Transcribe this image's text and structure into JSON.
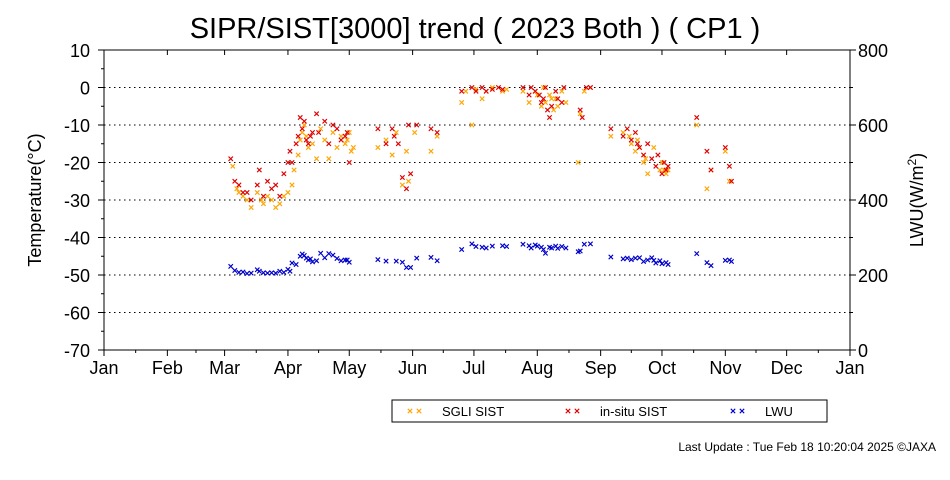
{
  "chart_data": {
    "type": "scatter",
    "title": "SIPR/SIST[3000] trend ( 2023 Both ) ( CP1 )",
    "xlabel": "",
    "ylabel": "Temperature(°C)",
    "ylabel_right_parts": [
      "LWU(W/m",
      "2",
      ")"
    ],
    "x_ticks": [
      "Jan",
      "Feb",
      "Mar",
      "Apr",
      "May",
      "Jun",
      "Jul",
      "Aug",
      "Sep",
      "Oct",
      "Nov",
      "Dec",
      "Jan"
    ],
    "x_range_days": [
      0,
      365
    ],
    "y_left": {
      "lim": [
        -70,
        10
      ],
      "ticks": [
        "10",
        "0",
        "-10",
        "-20",
        "-30",
        "-40",
        "-50",
        "-60",
        "-70"
      ]
    },
    "y_right": {
      "lim": [
        0,
        800
      ],
      "ticks": [
        "800",
        "600",
        "400",
        "200",
        "0"
      ]
    },
    "grid": "horizontal dotted",
    "legend": {
      "position": "bottom-center",
      "entries": [
        {
          "name": "SGLI SIST",
          "color": "#ffa500"
        },
        {
          "name": "in-situ SIST",
          "color": "#e00000"
        },
        {
          "name": "LWU",
          "color": "#0000cc"
        }
      ]
    },
    "series": [
      {
        "name": "SGLI SIST",
        "color": "#ffa500",
        "axis": "left",
        "points": [
          [
            63,
            -21
          ],
          [
            65,
            -27
          ],
          [
            66,
            -28
          ],
          [
            68,
            -29
          ],
          [
            70,
            -30
          ],
          [
            72,
            -32
          ],
          [
            75,
            -28
          ],
          [
            77,
            -30
          ],
          [
            78,
            -31
          ],
          [
            80,
            -29
          ],
          [
            82,
            -30
          ],
          [
            84,
            -32
          ],
          [
            86,
            -31
          ],
          [
            88,
            -29
          ],
          [
            90,
            -28
          ],
          [
            92,
            -26
          ],
          [
            93,
            -22
          ],
          [
            95,
            -18
          ],
          [
            96,
            -14
          ],
          [
            97,
            -12
          ],
          [
            98,
            -10
          ],
          [
            99,
            -13
          ],
          [
            100,
            -16
          ],
          [
            102,
            -15
          ],
          [
            104,
            -19
          ],
          [
            106,
            -11
          ],
          [
            108,
            -14
          ],
          [
            110,
            -19
          ],
          [
            112,
            -12
          ],
          [
            114,
            -16
          ],
          [
            116,
            -13
          ],
          [
            118,
            -15
          ],
          [
            119,
            -14
          ],
          [
            120,
            -12
          ],
          [
            121,
            -17
          ],
          [
            122,
            -16
          ],
          [
            134,
            -16
          ],
          [
            138,
            -14
          ],
          [
            141,
            -18
          ],
          [
            143,
            -12
          ],
          [
            146,
            -26
          ],
          [
            148,
            -17
          ],
          [
            149,
            -25
          ],
          [
            152,
            -12
          ],
          [
            160,
            -17
          ],
          [
            163,
            -13
          ],
          [
            175,
            -4
          ],
          [
            177,
            -1
          ],
          [
            180,
            -10
          ],
          [
            182,
            -0.5
          ],
          [
            185,
            -3
          ],
          [
            187,
            -1
          ],
          [
            190,
            0
          ],
          [
            195,
            -1
          ],
          [
            197,
            -0.5
          ],
          [
            205,
            -1
          ],
          [
            208,
            -4
          ],
          [
            211,
            -1
          ],
          [
            212,
            -2
          ],
          [
            214,
            -5
          ],
          [
            215,
            0
          ],
          [
            216,
            -4
          ],
          [
            218,
            -2
          ],
          [
            219,
            -3
          ],
          [
            220,
            -6
          ],
          [
            221,
            -3
          ],
          [
            222,
            -5
          ],
          [
            224,
            -1
          ],
          [
            226,
            -4
          ],
          [
            232,
            -20
          ],
          [
            233,
            -7
          ],
          [
            235,
            -1
          ],
          [
            238,
            0
          ],
          [
            248,
            -13
          ],
          [
            254,
            -12
          ],
          [
            257,
            -13
          ],
          [
            258,
            -15
          ],
          [
            260,
            -17
          ],
          [
            261,
            -14
          ],
          [
            262,
            -16
          ],
          [
            264,
            -20
          ],
          [
            265,
            -19
          ],
          [
            266,
            -23
          ],
          [
            269,
            -16
          ],
          [
            272,
            -22
          ],
          [
            273,
            -20
          ],
          [
            274,
            -22
          ],
          [
            275,
            -23
          ],
          [
            276,
            -22
          ],
          [
            290,
            -10
          ],
          [
            295,
            -27
          ],
          [
            297,
            -22
          ],
          [
            304,
            -17
          ],
          [
            306,
            -25
          ]
        ]
      },
      {
        "name": "in-situ SIST",
        "color": "#e00000",
        "axis": "left",
        "points": [
          [
            62,
            -19
          ],
          [
            64,
            -25
          ],
          [
            66,
            -26
          ],
          [
            68,
            -28
          ],
          [
            70,
            -28
          ],
          [
            72,
            -30
          ],
          [
            75,
            -26
          ],
          [
            76,
            -22
          ],
          [
            78,
            -29
          ],
          [
            80,
            -25
          ],
          [
            82,
            -27
          ],
          [
            84,
            -26
          ],
          [
            86,
            -29
          ],
          [
            88,
            -23
          ],
          [
            90,
            -20
          ],
          [
            91,
            -17
          ],
          [
            92,
            -20
          ],
          [
            94,
            -15
          ],
          [
            95,
            -13
          ],
          [
            96,
            -8
          ],
          [
            97,
            -11
          ],
          [
            98,
            -9
          ],
          [
            99,
            -14
          ],
          [
            100,
            -15
          ],
          [
            101,
            -13
          ],
          [
            102,
            -12
          ],
          [
            104,
            -7
          ],
          [
            105,
            -12
          ],
          [
            108,
            -9
          ],
          [
            110,
            -15
          ],
          [
            112,
            -10
          ],
          [
            114,
            -11
          ],
          [
            116,
            -14
          ],
          [
            118,
            -13
          ],
          [
            119,
            -12
          ],
          [
            120,
            -20
          ],
          [
            134,
            -11
          ],
          [
            138,
            -15
          ],
          [
            141,
            -11
          ],
          [
            142,
            -13
          ],
          [
            144,
            -15
          ],
          [
            146,
            -24
          ],
          [
            148,
            -27
          ],
          [
            149,
            -10
          ],
          [
            150,
            -23
          ],
          [
            153,
            -10
          ],
          [
            160,
            -11
          ],
          [
            163,
            -12
          ],
          [
            175,
            -1
          ],
          [
            180,
            0
          ],
          [
            182,
            -1
          ],
          [
            185,
            0
          ],
          [
            187,
            -1
          ],
          [
            190,
            -0.5
          ],
          [
            193,
            0
          ],
          [
            195,
            -0.5
          ],
          [
            205,
            0
          ],
          [
            208,
            -2
          ],
          [
            209,
            0
          ],
          [
            211,
            -1
          ],
          [
            213,
            -2
          ],
          [
            214,
            -4
          ],
          [
            215,
            -3
          ],
          [
            216,
            0
          ],
          [
            217,
            -6
          ],
          [
            218,
            -8
          ],
          [
            219,
            -5
          ],
          [
            221,
            -1
          ],
          [
            222,
            -3
          ],
          [
            224,
            -4
          ],
          [
            225,
            0
          ],
          [
            233,
            -6
          ],
          [
            234,
            -8
          ],
          [
            236,
            0
          ],
          [
            238,
            0
          ],
          [
            248,
            -11
          ],
          [
            254,
            -13
          ],
          [
            256,
            -11
          ],
          [
            258,
            -14
          ],
          [
            260,
            -12
          ],
          [
            261,
            -15
          ],
          [
            262,
            -16
          ],
          [
            264,
            -18
          ],
          [
            266,
            -15
          ],
          [
            268,
            -19
          ],
          [
            270,
            -21
          ],
          [
            271,
            -18
          ],
          [
            273,
            -23
          ],
          [
            274,
            -20
          ],
          [
            275,
            -22
          ],
          [
            276,
            -21
          ],
          [
            290,
            -8
          ],
          [
            295,
            -17
          ],
          [
            297,
            -22
          ],
          [
            304,
            -16
          ],
          [
            306,
            -21
          ],
          [
            307,
            -25
          ]
        ]
      },
      {
        "name": "LWU",
        "color": "#0000cc",
        "axis": "right",
        "points": [
          [
            62,
            223
          ],
          [
            64,
            212
          ],
          [
            66,
            207
          ],
          [
            68,
            208
          ],
          [
            70,
            204
          ],
          [
            72,
            205
          ],
          [
            75,
            214
          ],
          [
            76,
            210
          ],
          [
            78,
            206
          ],
          [
            80,
            205
          ],
          [
            82,
            206
          ],
          [
            84,
            205
          ],
          [
            86,
            210
          ],
          [
            88,
            207
          ],
          [
            90,
            215
          ],
          [
            91,
            210
          ],
          [
            92,
            232
          ],
          [
            94,
            228
          ],
          [
            96,
            250
          ],
          [
            97,
            256
          ],
          [
            98,
            252
          ],
          [
            99,
            245
          ],
          [
            100,
            240
          ],
          [
            101,
            243
          ],
          [
            102,
            235
          ],
          [
            104,
            238
          ],
          [
            106,
            258
          ],
          [
            108,
            246
          ],
          [
            110,
            257
          ],
          [
            112,
            253
          ],
          [
            114,
            244
          ],
          [
            116,
            238
          ],
          [
            118,
            240
          ],
          [
            119,
            240
          ],
          [
            120,
            234
          ],
          [
            134,
            241
          ],
          [
            138,
            237
          ],
          [
            143,
            237
          ],
          [
            146,
            234
          ],
          [
            148,
            220
          ],
          [
            150,
            220
          ],
          [
            153,
            245
          ],
          [
            160,
            247
          ],
          [
            163,
            238
          ],
          [
            175,
            268
          ],
          [
            180,
            283
          ],
          [
            182,
            276
          ],
          [
            185,
            274
          ],
          [
            187,
            272
          ],
          [
            190,
            277
          ],
          [
            195,
            278
          ],
          [
            197,
            276
          ],
          [
            205,
            282
          ],
          [
            208,
            278
          ],
          [
            209,
            272
          ],
          [
            211,
            280
          ],
          [
            212,
            277
          ],
          [
            214,
            274
          ],
          [
            215,
            268
          ],
          [
            216,
            258
          ],
          [
            218,
            274
          ],
          [
            219,
            272
          ],
          [
            221,
            277
          ],
          [
            222,
            271
          ],
          [
            224,
            276
          ],
          [
            226,
            272
          ],
          [
            232,
            262
          ],
          [
            233,
            264
          ],
          [
            235,
            282
          ],
          [
            238,
            283
          ],
          [
            248,
            248
          ],
          [
            254,
            243
          ],
          [
            256,
            245
          ],
          [
            258,
            241
          ],
          [
            260,
            245
          ],
          [
            262,
            246
          ],
          [
            264,
            236
          ],
          [
            266,
            240
          ],
          [
            268,
            246
          ],
          [
            269,
            239
          ],
          [
            270,
            232
          ],
          [
            272,
            238
          ],
          [
            273,
            230
          ],
          [
            275,
            233
          ],
          [
            276,
            228
          ],
          [
            290,
            257
          ],
          [
            295,
            233
          ],
          [
            297,
            225
          ],
          [
            304,
            239
          ],
          [
            306,
            240
          ],
          [
            307,
            236
          ]
        ]
      }
    ]
  },
  "footer": {
    "last_update": "Last Update : Tue Feb 18 10:20:04 2025  ©JAXA"
  }
}
